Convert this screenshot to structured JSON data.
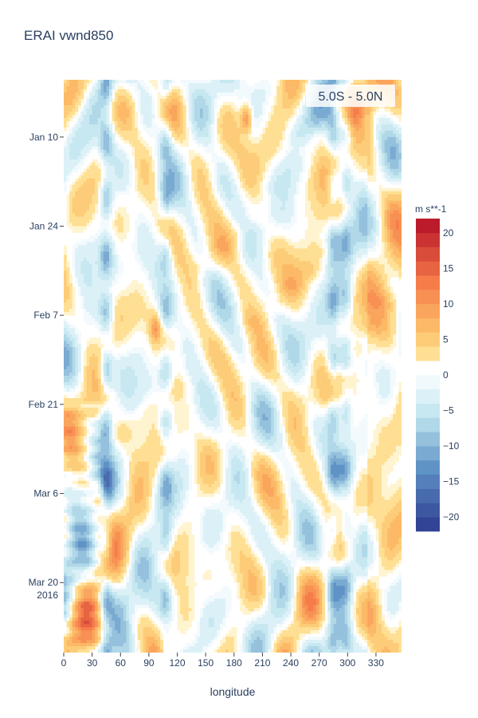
{
  "chart_data": {
    "type": "heatmap",
    "title": "ERAI vwnd850",
    "xlabel": "longitude",
    "ylabel": "",
    "annotation": "5.0S - 5.0N",
    "x_range": [
      0,
      357
    ],
    "x_ticks": [
      0,
      30,
      60,
      90,
      120,
      150,
      180,
      210,
      240,
      270,
      300,
      330
    ],
    "y_range": [
      "2016-01-01",
      "2016-03-31"
    ],
    "y_ticks": [
      {
        "date": "2016-01-10",
        "label": "Jan 10"
      },
      {
        "date": "2016-01-24",
        "label": "Jan 24"
      },
      {
        "date": "2016-02-07",
        "label": "Feb 7"
      },
      {
        "date": "2016-02-21",
        "label": "Feb 21"
      },
      {
        "date": "2016-03-06",
        "label": "Mar 6"
      },
      {
        "date": "2016-03-20",
        "label": "Mar 20",
        "label2": "2016"
      }
    ],
    "colorbar": {
      "title": "m s**-1",
      "range": [
        -22,
        22
      ],
      "ticks": [
        -20,
        -15,
        -10,
        -5,
        0,
        5,
        10,
        15,
        20
      ],
      "step": 2,
      "palette": {
        "neg_strong": "#2c3a8f",
        "neg_mid": "#5f93c6",
        "neg_weak": "#bde3ee",
        "neg_faint": "#e6f5fa",
        "zero": "#ffffff",
        "pos_faint": "#fee8a0",
        "pos_weak": "#fdc36c",
        "pos_mid": "#f67c4a",
        "pos_strong": "#b40f26"
      }
    },
    "features": {
      "westward_positive_streaks": [
        {
          "lon": [
            150,
            220
          ],
          "date": [
            "2016-01-20",
            "2016-01-30"
          ],
          "value": 6
        },
        {
          "lon": [
            280,
            340
          ],
          "date": [
            "2016-02-05",
            "2016-02-20"
          ],
          "value": 5
        },
        {
          "lon": [
            200,
            280
          ],
          "date": [
            "2016-01-28",
            "2016-02-08"
          ],
          "value": 6
        },
        {
          "lon": [
            60,
            120
          ],
          "date": [
            "2016-02-18",
            "2016-02-26"
          ],
          "value": 5
        },
        {
          "lon": [
            250,
            320
          ],
          "date": [
            "2016-01-05",
            "2016-01-12"
          ],
          "value": 7
        }
      ],
      "positive_hotspots": [
        {
          "lon": 193,
          "date": "2016-01-07",
          "value": 11
        },
        {
          "lon": 97,
          "date": "2016-02-09",
          "value": 8
        },
        {
          "lon": 38,
          "date": "2016-03-06",
          "value": 6
        }
      ],
      "negative_bands": [
        {
          "lon": 45,
          "value": -9
        },
        {
          "lon": 108,
          "value": -7
        },
        {
          "lon": 285,
          "value": -8
        },
        {
          "lon": 298,
          "value": -7
        }
      ]
    }
  }
}
